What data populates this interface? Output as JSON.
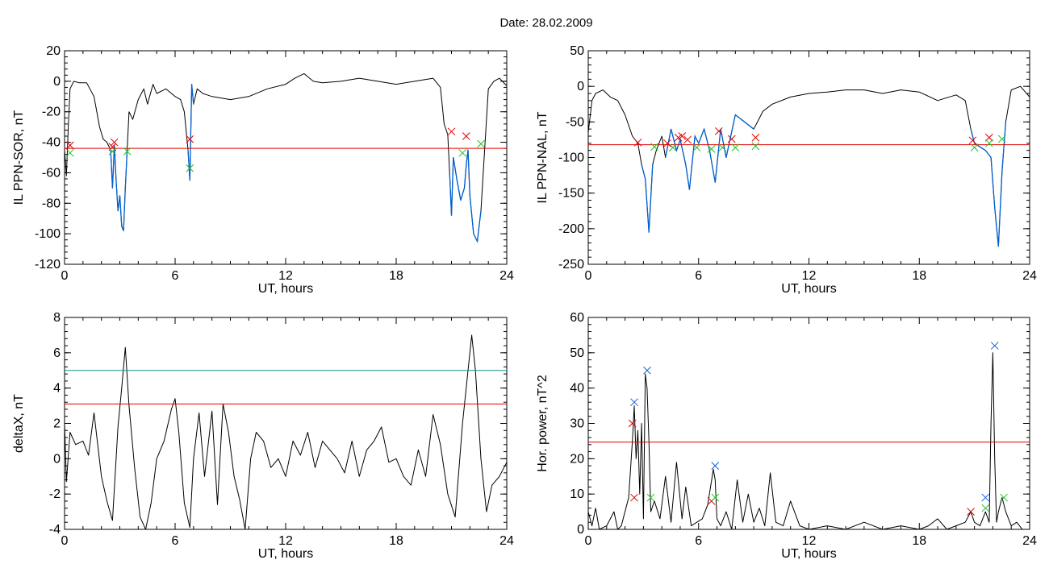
{
  "page_title": "Date:  28.02.2009",
  "colors": {
    "trace": "#000000",
    "threshold": "#e00000",
    "highlight": "#0060d0",
    "level_cyan": "#109090",
    "marker_red": "#e00000",
    "marker_green": "#20c020",
    "marker_blue": "#1060e0"
  },
  "chart_data": [
    {
      "id": "sor",
      "type": "line",
      "xlabel": "UT, hours",
      "ylabel": "IL PPN-SOR, nT",
      "xlim": [
        0,
        24
      ],
      "ylim": [
        -120,
        20
      ],
      "xticks": [
        0,
        6,
        12,
        18,
        24
      ],
      "yticks": [
        -120,
        -100,
        -80,
        -60,
        -40,
        -20,
        0,
        20
      ],
      "threshold": -44,
      "series": [
        {
          "x": [
            0.0,
            0.1,
            0.2,
            0.3,
            0.5,
            0.8,
            1.2,
            1.6,
            1.9,
            2.1,
            2.3,
            2.5,
            2.6,
            2.7,
            2.8,
            2.9,
            3.0,
            3.1,
            3.2,
            3.3,
            3.4,
            3.5,
            3.7,
            4.0,
            4.3,
            4.5,
            4.8,
            5.0,
            5.5,
            6.0,
            6.3,
            6.5,
            6.7,
            6.8,
            6.9,
            7.0,
            7.2,
            7.5,
            8.0,
            9.0,
            10.0,
            11.0,
            12.0,
            12.5,
            13.0,
            13.5,
            14.0,
            15.0,
            16.0,
            17.0,
            18.0,
            19.0,
            20.0,
            20.4,
            20.6,
            20.8,
            20.9,
            21.0,
            21.1,
            21.3,
            21.5,
            21.7,
            21.8,
            21.9,
            22.0,
            22.2,
            22.4,
            22.6,
            22.8,
            23.0,
            23.3,
            23.6,
            24.0
          ],
          "y": [
            -45,
            -62,
            -30,
            -5,
            0,
            -1,
            -1,
            -10,
            -30,
            -38,
            -40,
            -45,
            -70,
            -42,
            -65,
            -85,
            -75,
            -95,
            -98,
            -70,
            -45,
            -20,
            -25,
            -12,
            -5,
            -15,
            -2,
            -8,
            -5,
            -10,
            -12,
            -20,
            -45,
            -65,
            -2,
            -15,
            -5,
            -8,
            -10,
            -12,
            -10,
            -5,
            -2,
            2,
            5,
            0,
            -1,
            0,
            2,
            0,
            -2,
            0,
            2,
            -4,
            -28,
            -35,
            -60,
            -88,
            -50,
            -65,
            -78,
            -70,
            -55,
            -45,
            -75,
            -100,
            -105,
            -85,
            -45,
            -5,
            0,
            2,
            -3
          ],
          "highlight": [
            [
              2.4,
              3.45
            ],
            [
              6.6,
              7.0
            ],
            [
              20.9,
              22.6
            ]
          ]
        }
      ],
      "markers": [
        {
          "x": 0.3,
          "y": -42,
          "color": "red"
        },
        {
          "x": 0.3,
          "y": -47,
          "color": "green"
        },
        {
          "x": 2.6,
          "y": -43,
          "color": "red"
        },
        {
          "x": 2.7,
          "y": -40,
          "color": "red"
        },
        {
          "x": 2.6,
          "y": -46,
          "color": "green"
        },
        {
          "x": 3.4,
          "y": -46,
          "color": "green"
        },
        {
          "x": 6.8,
          "y": -38,
          "color": "red"
        },
        {
          "x": 6.8,
          "y": -57,
          "color": "green"
        },
        {
          "x": 21.0,
          "y": -33,
          "color": "red"
        },
        {
          "x": 21.8,
          "y": -36,
          "color": "red"
        },
        {
          "x": 21.6,
          "y": -47,
          "color": "green"
        },
        {
          "x": 22.6,
          "y": -41,
          "color": "green"
        }
      ]
    },
    {
      "id": "nal",
      "type": "line",
      "xlabel": "UT, hours",
      "ylabel": "IL PPN-NAL, nT",
      "xlim": [
        0,
        24
      ],
      "ylim": [
        -250,
        50
      ],
      "xticks": [
        0,
        6,
        12,
        18,
        24
      ],
      "yticks": [
        -250,
        -200,
        -150,
        -100,
        -50,
        0,
        50
      ],
      "threshold": -82,
      "series": [
        {
          "x": [
            0.0,
            0.2,
            0.4,
            0.8,
            1.2,
            1.6,
            2.0,
            2.4,
            2.7,
            2.9,
            3.1,
            3.3,
            3.5,
            3.7,
            4.0,
            4.2,
            4.5,
            4.8,
            5.0,
            5.3,
            5.5,
            5.8,
            6.0,
            6.3,
            6.6,
            6.9,
            7.2,
            7.5,
            8.0,
            8.5,
            9.0,
            9.5,
            10.0,
            11.0,
            12.0,
            13.0,
            14.0,
            15.0,
            16.0,
            17.0,
            18.0,
            19.0,
            20.0,
            20.5,
            20.8,
            21.0,
            21.3,
            21.6,
            21.9,
            22.1,
            22.3,
            22.5,
            22.7,
            23.0,
            23.5,
            24.0
          ],
          "y": [
            -65,
            -20,
            -10,
            -5,
            -15,
            -20,
            -40,
            -70,
            -80,
            -110,
            -130,
            -205,
            -110,
            -90,
            -70,
            -100,
            -60,
            -90,
            -75,
            -110,
            -145,
            -70,
            -80,
            -60,
            -90,
            -135,
            -60,
            -100,
            -40,
            -50,
            -60,
            -35,
            -25,
            -15,
            -10,
            -8,
            -5,
            -5,
            -10,
            -5,
            -8,
            -20,
            -12,
            -20,
            -60,
            -80,
            -85,
            -90,
            -100,
            -170,
            -225,
            -120,
            -50,
            -5,
            0,
            -15
          ],
          "highlight": [
            [
              2.8,
              3.5
            ],
            [
              4.2,
              9.3
            ],
            [
              20.8,
              22.7
            ]
          ]
        }
      ],
      "markers": [
        {
          "x": 2.7,
          "y": -79,
          "color": "red"
        },
        {
          "x": 3.6,
          "y": -85,
          "color": "green"
        },
        {
          "x": 4.3,
          "y": -80,
          "color": "red"
        },
        {
          "x": 4.6,
          "y": -86,
          "color": "green"
        },
        {
          "x": 4.9,
          "y": -72,
          "color": "red"
        },
        {
          "x": 5.1,
          "y": -70,
          "color": "red"
        },
        {
          "x": 5.4,
          "y": -75,
          "color": "red"
        },
        {
          "x": 5.9,
          "y": -86,
          "color": "green"
        },
        {
          "x": 6.7,
          "y": -88,
          "color": "green"
        },
        {
          "x": 7.1,
          "y": -63,
          "color": "red"
        },
        {
          "x": 7.3,
          "y": -86,
          "color": "green"
        },
        {
          "x": 7.8,
          "y": -74,
          "color": "red"
        },
        {
          "x": 8.0,
          "y": -86,
          "color": "green"
        },
        {
          "x": 9.1,
          "y": -72,
          "color": "red"
        },
        {
          "x": 9.1,
          "y": -84,
          "color": "green"
        },
        {
          "x": 20.9,
          "y": -76,
          "color": "red"
        },
        {
          "x": 21.0,
          "y": -86,
          "color": "green"
        },
        {
          "x": 21.8,
          "y": -72,
          "color": "red"
        },
        {
          "x": 21.8,
          "y": -80,
          "color": "green"
        },
        {
          "x": 22.5,
          "y": -74,
          "color": "green"
        }
      ]
    },
    {
      "id": "deltax",
      "type": "line",
      "xlabel": "UT, hours",
      "ylabel": "deltaX, nT",
      "xlim": [
        0,
        24
      ],
      "ylim": [
        -4,
        8
      ],
      "xticks": [
        0,
        6,
        12,
        18,
        24
      ],
      "yticks": [
        -4,
        -2,
        0,
        2,
        4,
        6,
        8
      ],
      "threshold": 3.1,
      "level": 5.0,
      "series": [
        {
          "x": [
            0.0,
            0.1,
            0.3,
            0.6,
            1.0,
            1.3,
            1.6,
            2.0,
            2.3,
            2.6,
            2.9,
            3.1,
            3.3,
            3.5,
            3.8,
            4.1,
            4.4,
            4.7,
            5.0,
            5.4,
            5.8,
            6.0,
            6.2,
            6.5,
            6.8,
            7.0,
            7.3,
            7.6,
            8.0,
            8.3,
            8.6,
            8.9,
            9.2,
            9.5,
            9.8,
            10.1,
            10.4,
            10.8,
            11.2,
            11.6,
            12.0,
            12.4,
            12.8,
            13.2,
            13.6,
            14.0,
            14.4,
            14.8,
            15.2,
            15.6,
            16.0,
            16.4,
            16.8,
            17.2,
            17.6,
            18.0,
            18.4,
            18.8,
            19.2,
            19.6,
            20.0,
            20.4,
            20.8,
            21.2,
            21.6,
            21.9,
            22.1,
            22.3,
            22.6,
            22.9,
            23.2,
            23.6,
            24.0
          ],
          "y": [
            2.0,
            -1.3,
            1.5,
            0.8,
            1.0,
            0.2,
            2.6,
            -1.0,
            -2.4,
            -3.5,
            1.8,
            4.0,
            6.3,
            3.0,
            -0.5,
            -3.3,
            -4.0,
            -2.5,
            0.0,
            1.0,
            2.8,
            3.4,
            1.5,
            -2.5,
            -3.9,
            0.0,
            2.6,
            -1.0,
            2.7,
            -2.6,
            3.1,
            1.5,
            -1.0,
            -2.3,
            -4.0,
            0.0,
            1.5,
            1.0,
            -0.5,
            0.0,
            -1.0,
            1.0,
            0.2,
            1.5,
            -0.5,
            1.0,
            0.5,
            0.0,
            -0.8,
            1.0,
            -1.0,
            0.5,
            1.0,
            1.8,
            -0.2,
            0.0,
            -1.0,
            -1.5,
            0.5,
            -1.0,
            2.5,
            0.8,
            -2.0,
            -3.3,
            2.0,
            5.0,
            7.0,
            5.0,
            0.0,
            -3.0,
            -1.5,
            -1.0,
            -0.2
          ]
        }
      ]
    },
    {
      "id": "power",
      "type": "line",
      "xlabel": "UT, hours",
      "ylabel": "Hor. power, nT^2",
      "xlim": [
        0,
        24
      ],
      "ylim": [
        0,
        60
      ],
      "xticks": [
        0,
        6,
        12,
        18,
        24
      ],
      "yticks": [
        0,
        10,
        20,
        30,
        40,
        50,
        60
      ],
      "threshold": 24.7,
      "series": [
        {
          "x": [
            0.0,
            0.2,
            0.4,
            0.6,
            1.0,
            1.4,
            1.6,
            1.8,
            2.2,
            2.4,
            2.5,
            2.6,
            2.7,
            2.8,
            2.9,
            3.0,
            3.1,
            3.2,
            3.3,
            3.4,
            3.6,
            3.9,
            4.2,
            4.5,
            4.8,
            5.1,
            5.3,
            5.6,
            5.9,
            6.2,
            6.5,
            6.8,
            6.9,
            7.0,
            7.2,
            7.5,
            7.8,
            8.1,
            8.4,
            8.7,
            9.0,
            9.3,
            9.6,
            9.9,
            10.2,
            10.6,
            11.0,
            11.5,
            12.0,
            13.0,
            14.0,
            15.0,
            16.0,
            17.0,
            18.0,
            18.5,
            19.0,
            19.5,
            20.0,
            20.5,
            20.8,
            21.0,
            21.3,
            21.6,
            21.8,
            21.9,
            22.0,
            22.1,
            22.2,
            22.3,
            22.5,
            22.7,
            23.0,
            23.3,
            23.6,
            24.0
          ],
          "y": [
            5,
            1,
            6,
            0,
            1,
            5,
            0,
            1,
            9,
            25,
            35,
            20,
            28,
            10,
            30,
            3,
            44,
            40,
            25,
            5,
            8,
            3,
            15,
            2,
            19,
            3,
            12,
            1,
            2,
            3,
            7,
            17,
            14,
            3,
            1,
            5,
            0,
            14,
            2,
            10,
            2,
            6,
            1,
            16,
            2,
            1,
            8,
            1,
            0,
            1,
            0,
            2,
            0,
            1,
            0,
            1,
            3,
            0,
            1,
            2,
            5,
            2,
            1,
            5,
            2,
            30,
            50,
            20,
            2,
            5,
            9,
            5,
            1,
            2,
            0,
            0
          ]
        }
      ],
      "markers": [
        {
          "x": 2.4,
          "y": 30,
          "color": "red"
        },
        {
          "x": 2.5,
          "y": 9,
          "color": "red"
        },
        {
          "x": 2.5,
          "y": 36,
          "color": "blue"
        },
        {
          "x": 3.2,
          "y": 45,
          "color": "blue"
        },
        {
          "x": 3.4,
          "y": 9,
          "color": "green"
        },
        {
          "x": 6.7,
          "y": 8,
          "color": "red"
        },
        {
          "x": 6.9,
          "y": 18,
          "color": "blue"
        },
        {
          "x": 6.9,
          "y": 9,
          "color": "green"
        },
        {
          "x": 20.8,
          "y": 5,
          "color": "red"
        },
        {
          "x": 21.6,
          "y": 9,
          "color": "blue"
        },
        {
          "x": 21.6,
          "y": 6,
          "color": "green"
        },
        {
          "x": 22.1,
          "y": 52,
          "color": "blue"
        },
        {
          "x": 22.6,
          "y": 9,
          "color": "green"
        }
      ]
    }
  ]
}
